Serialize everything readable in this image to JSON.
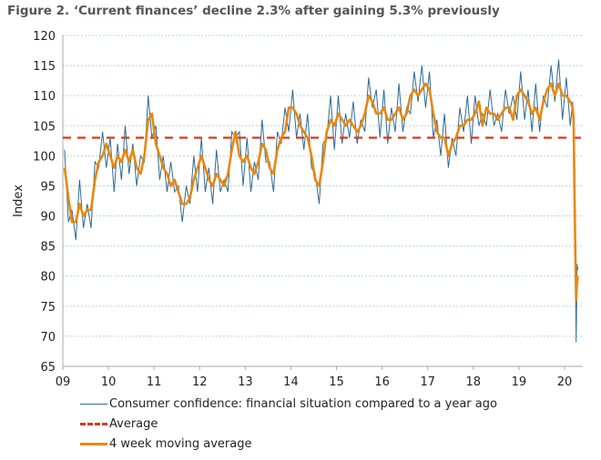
{
  "title": "Figure 2. ‘Current finances’ decline 2.3% after gaining 5.3% previously",
  "chart_data": {
    "type": "line",
    "title": "Figure 2. ‘Current finances’ decline 2.3% after gaining 5.3% previously",
    "xlabel": "",
    "ylabel": "Index",
    "ylim": [
      65,
      120
    ],
    "yticks": [
      65,
      70,
      75,
      80,
      85,
      90,
      95,
      100,
      105,
      110,
      115,
      120
    ],
    "xticks": [
      {
        "label": "09",
        "date": "2009-01-01"
      },
      {
        "label": "10",
        "date": "2010-01-01"
      },
      {
        "label": "11",
        "date": "2011-01-01"
      },
      {
        "label": "12",
        "date": "2012-01-01"
      },
      {
        "label": "13",
        "date": "2013-01-01"
      },
      {
        "label": "14",
        "date": "2014-01-01"
      },
      {
        "label": "15",
        "date": "2015-01-01"
      },
      {
        "label": "16",
        "date": "2016-01-01"
      },
      {
        "label": "17",
        "date": "2017-01-01"
      },
      {
        "label": "18",
        "date": "2018-01-01"
      },
      {
        "label": "19",
        "date": "2019-01-01"
      },
      {
        "label": "20",
        "date": "2020-01-01"
      }
    ],
    "xlim": [
      "2009-01-01",
      "2020-06-01"
    ],
    "grid": "horizontal dotted",
    "legend_position": "bottom",
    "dates": [
      "2009-01-15",
      "2009-02-15",
      "2009-03-15",
      "2009-04-15",
      "2009-05-15",
      "2009-06-15",
      "2009-07-15",
      "2009-08-15",
      "2009-09-15",
      "2009-10-15",
      "2009-11-15",
      "2009-12-15",
      "2010-01-15",
      "2010-02-15",
      "2010-03-15",
      "2010-04-15",
      "2010-05-15",
      "2010-06-15",
      "2010-07-15",
      "2010-08-15",
      "2010-09-15",
      "2010-10-15",
      "2010-11-15",
      "2010-12-15",
      "2011-01-15",
      "2011-02-15",
      "2011-03-15",
      "2011-04-15",
      "2011-05-15",
      "2011-06-15",
      "2011-07-15",
      "2011-08-15",
      "2011-09-15",
      "2011-10-15",
      "2011-11-15",
      "2011-12-15",
      "2012-01-15",
      "2012-02-15",
      "2012-03-15",
      "2012-04-15",
      "2012-05-15",
      "2012-06-15",
      "2012-07-15",
      "2012-08-15",
      "2012-09-15",
      "2012-10-15",
      "2012-11-15",
      "2012-12-15",
      "2013-01-15",
      "2013-02-15",
      "2013-03-15",
      "2013-04-15",
      "2013-05-15",
      "2013-06-15",
      "2013-07-15",
      "2013-08-15",
      "2013-09-15",
      "2013-10-15",
      "2013-11-15",
      "2013-12-15",
      "2014-01-15",
      "2014-02-15",
      "2014-03-15",
      "2014-04-15",
      "2014-05-15",
      "2014-06-15",
      "2014-07-15",
      "2014-08-15",
      "2014-09-15",
      "2014-10-15",
      "2014-11-15",
      "2014-12-15",
      "2015-01-15",
      "2015-02-15",
      "2015-03-15",
      "2015-04-15",
      "2015-05-15",
      "2015-06-15",
      "2015-07-15",
      "2015-08-15",
      "2015-09-15",
      "2015-10-15",
      "2015-11-15",
      "2015-12-15",
      "2016-01-15",
      "2016-02-15",
      "2016-03-15",
      "2016-04-15",
      "2016-05-15",
      "2016-06-15",
      "2016-07-15",
      "2016-08-15",
      "2016-09-15",
      "2016-10-15",
      "2016-11-15",
      "2016-12-15",
      "2017-01-15",
      "2017-02-15",
      "2017-03-15",
      "2017-04-15",
      "2017-05-15",
      "2017-06-15",
      "2017-07-15",
      "2017-08-15",
      "2017-09-15",
      "2017-10-15",
      "2017-11-15",
      "2017-12-15",
      "2018-01-15",
      "2018-02-15",
      "2018-03-15",
      "2018-04-15",
      "2018-05-15",
      "2018-06-15",
      "2018-07-15",
      "2018-08-15",
      "2018-09-15",
      "2018-10-15",
      "2018-11-15",
      "2018-12-15",
      "2019-01-15",
      "2019-02-15",
      "2019-03-15",
      "2019-04-15",
      "2019-05-15",
      "2019-06-15",
      "2019-07-15",
      "2019-08-15",
      "2019-09-15",
      "2019-10-15",
      "2019-11-15",
      "2019-12-15",
      "2020-01-15",
      "2020-02-15",
      "2020-03-06",
      "2020-03-13",
      "2020-03-20",
      "2020-03-27",
      "2020-04-03",
      "2020-04-10",
      "2020-04-17"
    ],
    "series": [
      {
        "name": "Consumer confidence: financial situation compared to a year ago",
        "color": "#2e6a94",
        "style": "solid-thin",
        "values": [
          101,
          89,
          91,
          86,
          96,
          88,
          92,
          88,
          99,
          98,
          104,
          98,
          103,
          94,
          102,
          96,
          105,
          97,
          102,
          95,
          100,
          99,
          110,
          103,
          105,
          96,
          100,
          94,
          99,
          94,
          95,
          89,
          95,
          92,
          100,
          94,
          103,
          94,
          98,
          92,
          101,
          94,
          96,
          94,
          104,
          103,
          104,
          95,
          103,
          94,
          99,
          96,
          106,
          99,
          99,
          94,
          104,
          102,
          108,
          104,
          111,
          103,
          107,
          101,
          107,
          98,
          97,
          92,
          102,
          103,
          110,
          101,
          110,
          102,
          107,
          103,
          109,
          102,
          106,
          104,
          113,
          108,
          111,
          103,
          111,
          102,
          108,
          104,
          112,
          104,
          108,
          107,
          114,
          109,
          115,
          108,
          114,
          103,
          106,
          100,
          107,
          98,
          103,
          100,
          108,
          104,
          110,
          102,
          110,
          105,
          107,
          105,
          111,
          105,
          107,
          104,
          111,
          107,
          110,
          106,
          114,
          106,
          111,
          104,
          112,
          104,
          110,
          108,
          115,
          109,
          116,
          106,
          113,
          105,
          109,
          104,
          97,
          84,
          69,
          82,
          81
        ]
      },
      {
        "name": "Average",
        "color": "#d9361f",
        "style": "dashed",
        "constant": 103
      },
      {
        "name": "4 week moving average",
        "color": "#e8870e",
        "style": "solid-thick",
        "values": [
          98,
          93,
          89,
          89,
          92,
          90,
          91,
          91,
          96,
          99,
          100,
          102,
          100,
          98,
          100,
          99,
          101,
          99,
          101,
          98,
          97,
          100,
          106,
          107,
          102,
          100,
          98,
          97,
          95,
          96,
          94,
          92,
          92,
          93,
          96,
          98,
          100,
          98,
          96,
          95,
          97,
          96,
          95,
          97,
          101,
          104,
          100,
          99,
          100,
          98,
          97,
          99,
          102,
          101,
          98,
          97,
          101,
          103,
          104,
          108,
          108,
          107,
          105,
          104,
          103,
          100,
          96,
          95,
          99,
          104,
          106,
          105,
          107,
          106,
          105,
          106,
          105,
          104,
          105,
          107,
          110,
          109,
          107,
          107,
          108,
          106,
          106,
          107,
          108,
          106,
          107,
          110,
          111,
          110,
          111,
          112,
          111,
          107,
          104,
          103,
          103,
          100,
          102,
          103,
          105,
          105,
          106,
          106,
          107,
          109,
          105,
          108,
          107,
          107,
          106,
          107,
          108,
          108,
          106,
          110,
          111,
          110,
          109,
          107,
          108,
          106,
          109,
          111,
          112,
          110,
          112,
          110,
          110,
          109,
          108,
          106,
          95,
          84,
          76,
          79,
          80
        ]
      }
    ]
  },
  "legend": {
    "items": [
      "Consumer confidence: financial situation compared to a year ago",
      "Average",
      "4 week moving average"
    ]
  }
}
